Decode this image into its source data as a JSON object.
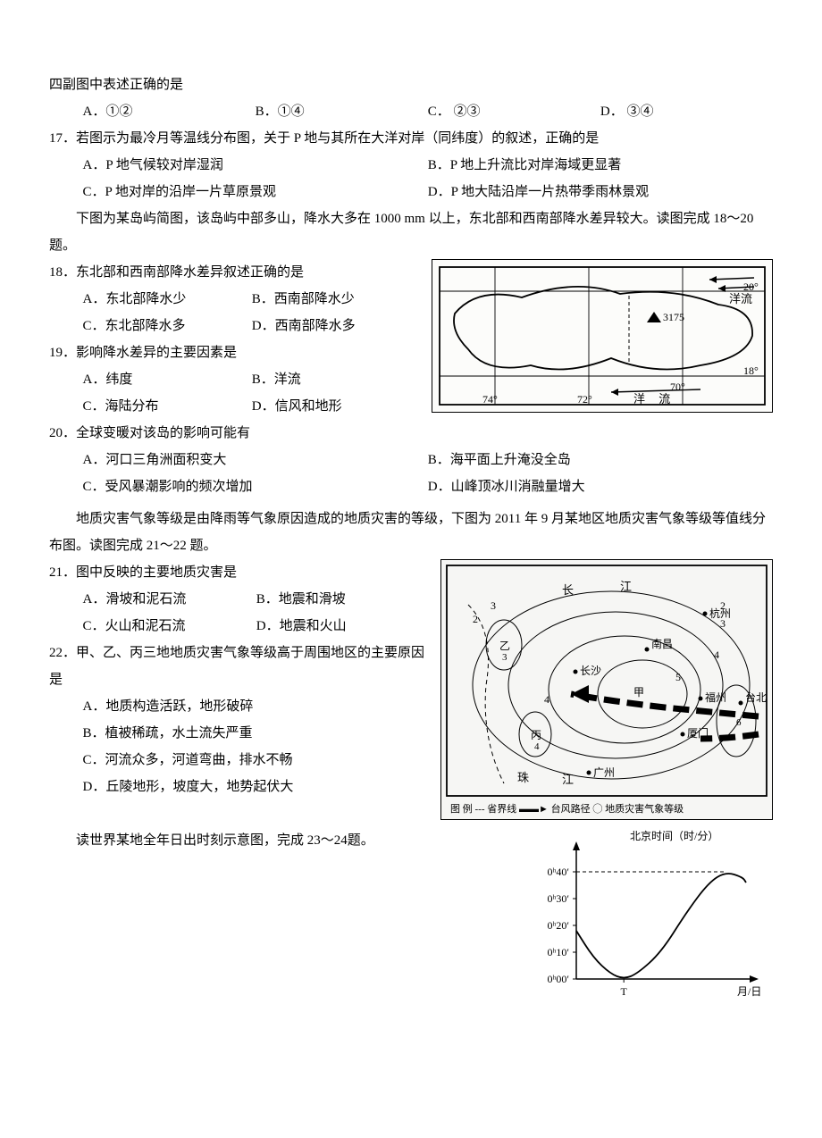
{
  "intro_line": "四副图中表述正确的是",
  "q_prev_opts": {
    "a": "A．①②",
    "b": "B．①④",
    "c": "C．  ②③",
    "d": "D．  ③④"
  },
  "q17": {
    "stem": "17．若图示为最冷月等温线分布图，关于 P 地与其所在大洋对岸（同纬度）的叙述，正确的是",
    "a": "A．P 地气候较对岸湿润",
    "b": "B．P 地上升流比对岸海域更显著",
    "c": "C．P 地对岸的沿岸一片草原景观",
    "d": "D．P 地大陆沿岸一片热带季雨林景观"
  },
  "passage1": "下图为某岛屿简图，该岛屿中部多山，降水大多在 1000 mm 以上，东北部和西南部降水差异较大。读图完成 18～20 题。",
  "q18": {
    "stem": "18．东北部和西南部降水差异叙述正确的是",
    "a": "A．东北部降水少",
    "b": "B．西南部降水少",
    "c": "C．东北部降水多",
    "d": "D．西南部降水多"
  },
  "q19": {
    "stem": "19．影响降水差异的主要因素是",
    "a": "A．纬度",
    "b": "B．洋流",
    "c": "C．海陆分布",
    "d": "D．信风和地形"
  },
  "q20": {
    "stem": "20．全球变暖对该岛的影响可能有",
    "a": "A．河口三角洲面积变大",
    "b": "B．海平面上升淹没全岛",
    "c": "C．受风暴潮影响的频次增加",
    "d": "D．山峰顶冰川消融量增大"
  },
  "passage2": "地质灾害气象等级是由降雨等气象原因造成的地质灾害的等级，下图为 2011 年 9 月某地区地质灾害气象等级等值线分布图。读图完成 21～22 题。",
  "q21": {
    "stem": "21．图中反映的主要地质灾害是",
    "a": "A．滑坡和泥石流",
    "b": "B．地震和滑坡",
    "c": "C．火山和泥石流",
    "d": "D．地震和火山"
  },
  "q22": {
    "stem": "22．甲、乙、丙三地地质灾害气象等级高于周围地区的主要原因是",
    "a": "A．地质构造活跃，地形破碎",
    "b": "B．植被稀疏，水土流失严重",
    "c": "C．河流众多，河道弯曲，排水不畅",
    "d": "D．丘陵地形，坡度大，地势起伏大"
  },
  "passage3": "读世界某地全年日出时刻示意图，完成 23～24题。",
  "chart": {
    "type": "line",
    "title": "北京时间（时/分）",
    "xlabel": "月/日",
    "y_ticks": [
      "0ʰ00′",
      "0ʰ10′",
      "0ʰ20′",
      "0ʰ30′",
      "0ʰ40′"
    ],
    "y_values": [
      0,
      10,
      20,
      30,
      40
    ],
    "T_label": "T",
    "curve_points": [
      [
        0,
        18
      ],
      [
        10,
        8
      ],
      [
        20,
        2
      ],
      [
        28,
        0
      ],
      [
        36,
        2
      ],
      [
        50,
        10
      ],
      [
        65,
        25
      ],
      [
        78,
        36
      ],
      [
        88,
        40
      ],
      [
        98,
        38
      ],
      [
        100,
        36
      ]
    ],
    "dash_y": 40,
    "axis_color": "#000",
    "curve_color": "#000",
    "dash_color": "#000",
    "font_size": 12
  },
  "map1": {
    "type": "map",
    "labels": {
      "lat_top": "20°",
      "lat_bot": "18°",
      "lon_74": "74°",
      "lon_72": "72°",
      "lon_70": "70°",
      "current1": "洋流",
      "current2": "洋  流",
      "peak": "3175"
    },
    "background": "#fcfcfa",
    "line_color": "#000"
  },
  "map2": {
    "type": "map",
    "cities": [
      "长",
      "江",
      "杭州",
      "南昌",
      "长沙",
      "福州",
      "厦门",
      "台北",
      "广州",
      "珠",
      "江"
    ],
    "legend": "图 例      省界线          台风路径       地质灾害气象等级",
    "contours": [
      2,
      3,
      4,
      5,
      6
    ],
    "background": "#f6f6f4",
    "line_color": "#000"
  }
}
